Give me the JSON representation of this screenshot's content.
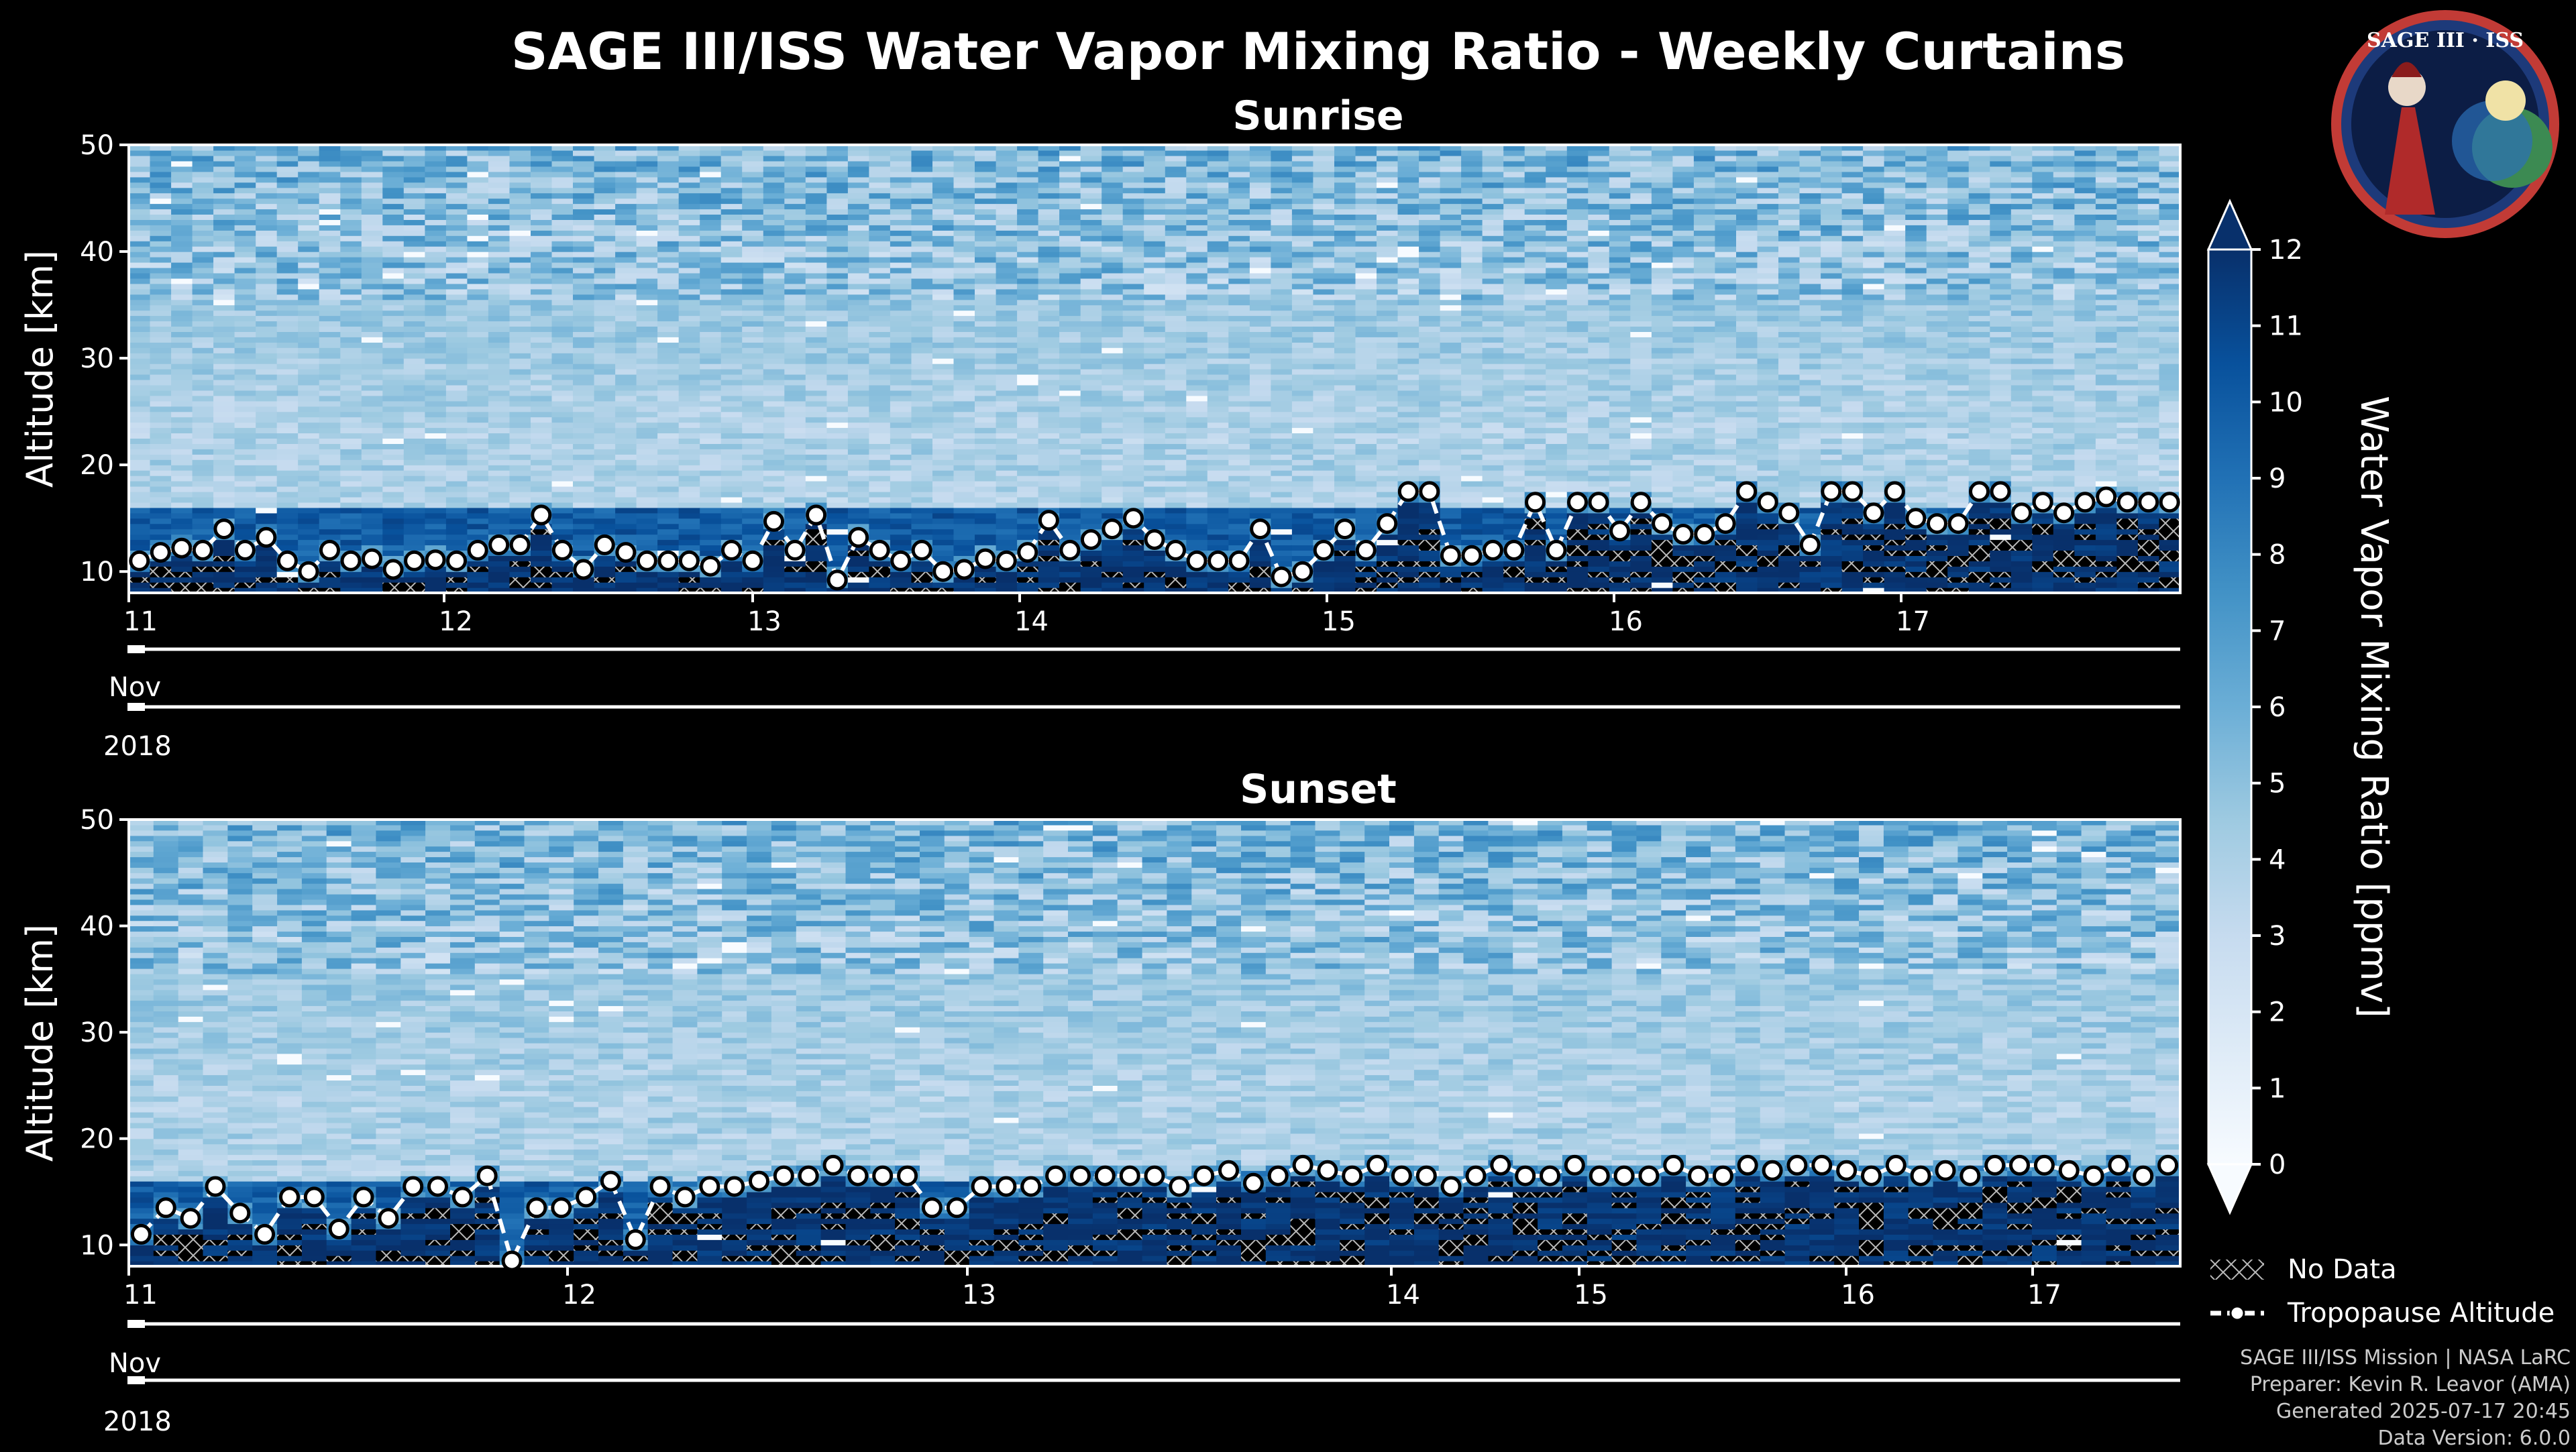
{
  "title": "SAGE III/ISS Water Vapor Mixing Ratio - Weekly Curtains",
  "logo": {
    "text": "SAGE III · ISS"
  },
  "panels": [
    {
      "title": "Sunrise",
      "ylabel": "Altitude [km]"
    },
    {
      "title": "Sunset",
      "ylabel": "Altitude [km]"
    }
  ],
  "colorbar": {
    "label": "Water Vapor Mixing Ratio [ppmv]",
    "ticks": [
      "0",
      "1",
      "2",
      "3",
      "4",
      "5",
      "6",
      "7",
      "8",
      "9",
      "10",
      "11",
      "12"
    ]
  },
  "legend": {
    "no_data": "No Data",
    "tropopause": "Tropopause Altitude"
  },
  "footer": {
    "line1": "SAGE III/ISS Mission | NASA LaRC",
    "line2": "Preparer: Kevin R. Leavor (AMA)",
    "line3": "Generated 2025-07-17 20:45",
    "line4": "Data Version: 6.0.0"
  },
  "chart_data": [
    {
      "type": "heatmap",
      "title": "Sunrise",
      "ylabel": "Altitude [km]",
      "ylim": [
        8,
        50
      ],
      "yticks": [
        10,
        20,
        30,
        40,
        50
      ],
      "xlim": [
        "2018-11-11",
        "2018-11-18"
      ],
      "xticks_day": [
        "11",
        "12",
        "13",
        "14",
        "15",
        "16",
        "17"
      ],
      "xtick_month": "Nov",
      "xtick_year": "2018",
      "colormap": "Blues",
      "clim": [
        0,
        12
      ],
      "tropopause": [
        11.0,
        11.8,
        12.2,
        12.0,
        14.0,
        12.0,
        13.2,
        11.0,
        10.0,
        12.0,
        11.0,
        11.2,
        10.2,
        11.0,
        11.1,
        11.0,
        12.0,
        12.5,
        12.5,
        15.3,
        12.0,
        10.2,
        12.5,
        11.8,
        11.0,
        11.0,
        11.0,
        10.5,
        12.0,
        11.0,
        14.7,
        12.0,
        15.3,
        9.2,
        13.2,
        12.0,
        11.0,
        12.0,
        10.0,
        10.2,
        11.2,
        11.0,
        11.8,
        14.8,
        12.0,
        13.0,
        14.0,
        15.0,
        13.0,
        12.0,
        11.0,
        11.0,
        11.0,
        14.0,
        9.5,
        10.0,
        12.0,
        14.0,
        12.0,
        14.5,
        17.5,
        17.5,
        11.5,
        11.5,
        12.0,
        12.0,
        16.5,
        12.0,
        16.5,
        16.5,
        13.8,
        16.5,
        14.5,
        13.5,
        13.5,
        14.5,
        17.5,
        16.5,
        15.5,
        12.5,
        17.5,
        17.5,
        15.5,
        17.5,
        15.0,
        14.5,
        14.5,
        17.5,
        17.5,
        15.5,
        16.5,
        15.5,
        16.5,
        17.0,
        16.5,
        16.5,
        16.5
      ]
    },
    {
      "type": "heatmap",
      "title": "Sunset",
      "ylabel": "Altitude [km]",
      "ylim": [
        8,
        50
      ],
      "yticks": [
        10,
        20,
        30,
        40,
        50
      ],
      "xlim": [
        "2018-11-11",
        "2018-11-17.5"
      ],
      "xticks_day": [
        "11",
        "12",
        "13",
        "14",
        "15",
        "16",
        "17"
      ],
      "xtick_month": "Nov",
      "xtick_year": "2018",
      "colormap": "Blues",
      "clim": [
        0,
        12
      ],
      "tropopause": [
        11.0,
        13.5,
        12.5,
        15.5,
        13.0,
        11.0,
        14.5,
        14.5,
        11.5,
        14.5,
        12.5,
        15.5,
        15.5,
        14.5,
        16.5,
        8.5,
        13.5,
        13.5,
        14.5,
        16.0,
        10.5,
        15.5,
        14.5,
        15.5,
        15.5,
        16.0,
        16.5,
        16.5,
        17.5,
        16.5,
        16.5,
        16.5,
        13.5,
        13.5,
        15.5,
        15.5,
        15.5,
        16.5,
        16.5,
        16.5,
        16.5,
        16.5,
        15.5,
        16.5,
        17.0,
        15.8,
        16.5,
        17.5,
        17.0,
        16.5,
        17.5,
        16.5,
        16.5,
        15.5,
        16.5,
        17.5,
        16.5,
        16.5,
        17.5,
        16.5,
        16.5,
        16.5,
        17.5,
        16.5,
        16.5,
        17.5,
        17.0,
        17.5,
        17.5,
        17.0,
        16.5,
        17.5,
        16.5,
        17.0,
        16.5,
        17.5,
        17.5,
        17.5,
        17.0,
        16.5,
        17.5,
        16.5,
        17.5
      ]
    }
  ]
}
